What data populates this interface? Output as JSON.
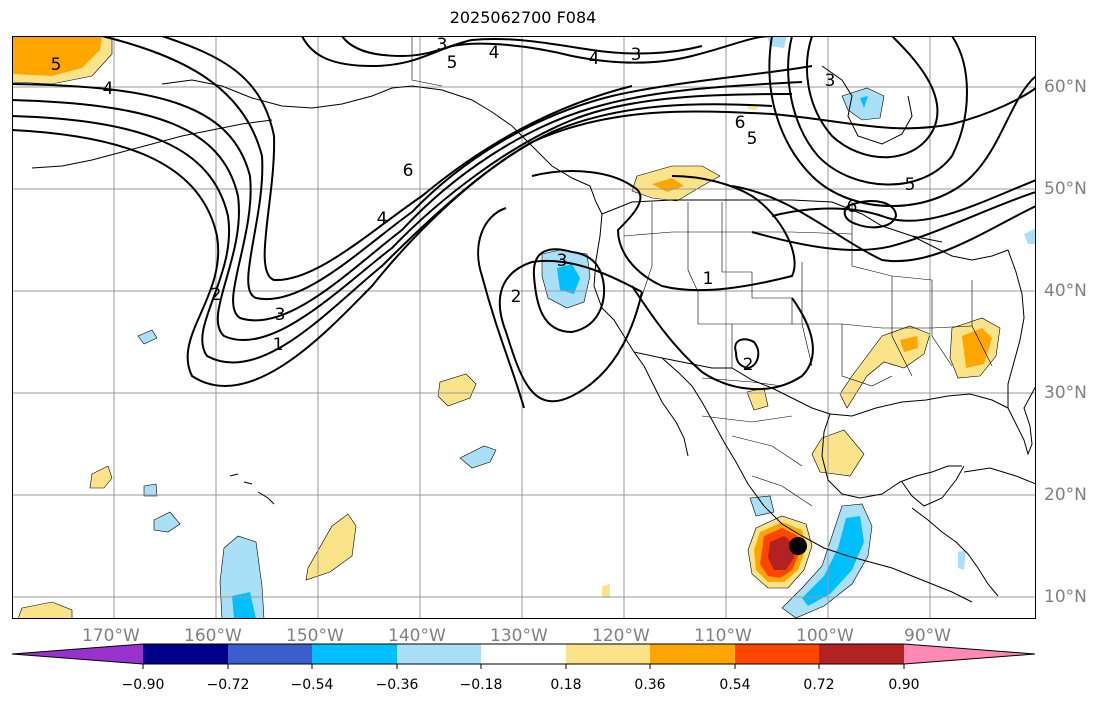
{
  "title": "2025062700 F084",
  "map": {
    "lon_labels": [
      "170°W",
      "160°W",
      "150°W",
      "140°W",
      "130°W",
      "120°W",
      "110°W",
      "100°W",
      "90°W"
    ],
    "lat_labels": [
      "60°N",
      "50°N",
      "40°N",
      "30°N",
      "20°N",
      "10°N"
    ],
    "contour_labels": [
      {
        "text": "3"
      },
      {
        "text": "4"
      },
      {
        "text": "5"
      },
      {
        "text": "4"
      },
      {
        "text": "3"
      },
      {
        "text": "5"
      },
      {
        "text": "4"
      },
      {
        "text": "3"
      },
      {
        "text": "6"
      },
      {
        "text": "5"
      },
      {
        "text": "6"
      },
      {
        "text": "5"
      },
      {
        "text": "6"
      },
      {
        "text": "4"
      },
      {
        "text": "2"
      },
      {
        "text": "3"
      },
      {
        "text": "1"
      },
      {
        "text": "3"
      },
      {
        "text": "2"
      },
      {
        "text": "1"
      },
      {
        "text": "2"
      }
    ],
    "colors": {
      "grid": "#9a9a9a",
      "contour": "#000000",
      "lat_label": "#808080"
    }
  },
  "colorbar": {
    "ticks": [
      "−0.90",
      "−0.72",
      "−0.54",
      "−0.36",
      "−0.18",
      "0.18",
      "0.36",
      "0.54",
      "0.72",
      "0.90"
    ],
    "colors": [
      "#9932cc",
      "#00008b",
      "#3a5fcd",
      "#00bfff",
      "#aadff8",
      "#ffffff",
      "#fbe38a",
      "#ffa500",
      "#ff4500",
      "#b22222",
      "#ff88b4"
    ]
  }
}
